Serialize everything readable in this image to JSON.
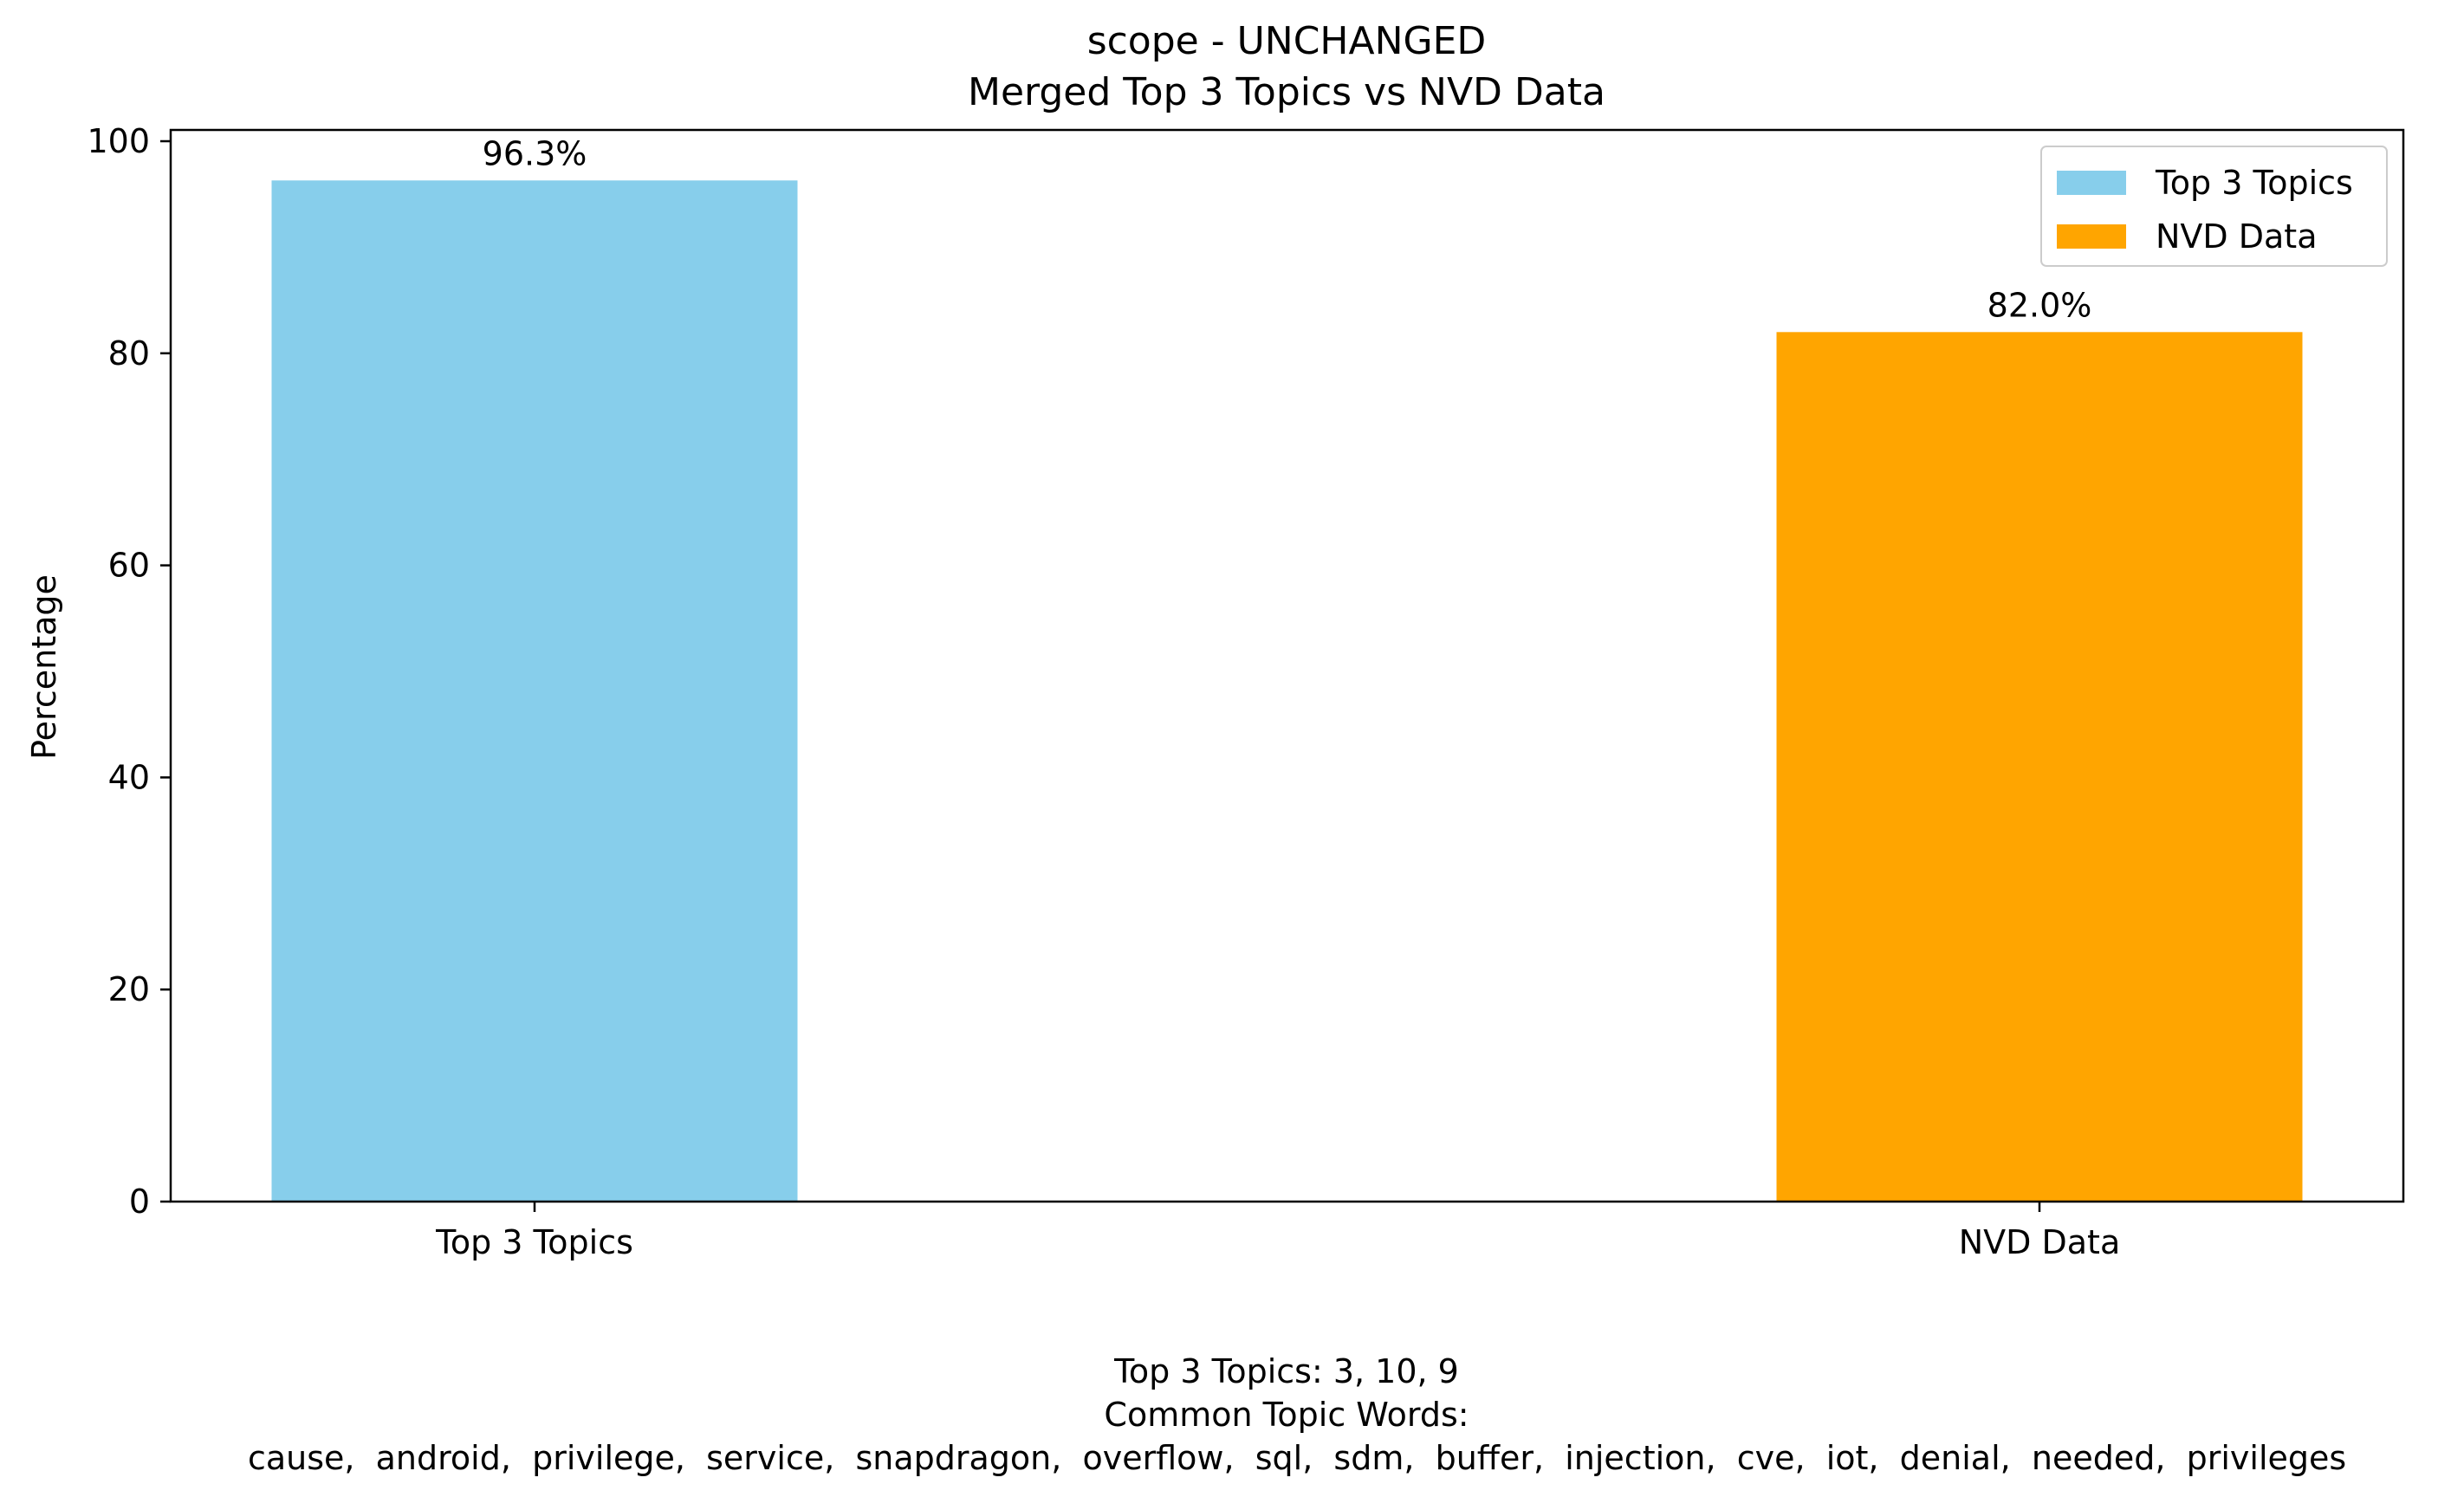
{
  "chart_data": {
    "type": "bar",
    "title_line1": "scope - UNCHANGED",
    "title_line2": "Merged Top 3 Topics vs NVD Data",
    "categories": [
      "Top 3 Topics",
      "NVD Data"
    ],
    "values": [
      96.3,
      82.0
    ],
    "data_labels": [
      "96.3%",
      "82.0%"
    ],
    "colors": [
      "#87ceeb",
      "#ffa500"
    ],
    "xlabel": "",
    "ylabel": "Percentage",
    "ylim": [
      0,
      100
    ],
    "yticks": [
      0,
      20,
      40,
      60,
      80,
      100
    ],
    "grid": false,
    "legend": {
      "placement": "top-right",
      "entries": [
        {
          "name": "Top 3 Topics",
          "color": "#87ceeb"
        },
        {
          "name": "NVD Data",
          "color": "#ffa500"
        }
      ]
    }
  },
  "footer": {
    "line1": "Top 3 Topics: 3, 10, 9",
    "line2": "Common Topic Words:",
    "line3": "  cause,  android,  privilege,  service,  snapdragon,  overflow,  sql,  sdm,  buffer,  injection,  cve,  iot,  denial,  needed,  privileges"
  }
}
